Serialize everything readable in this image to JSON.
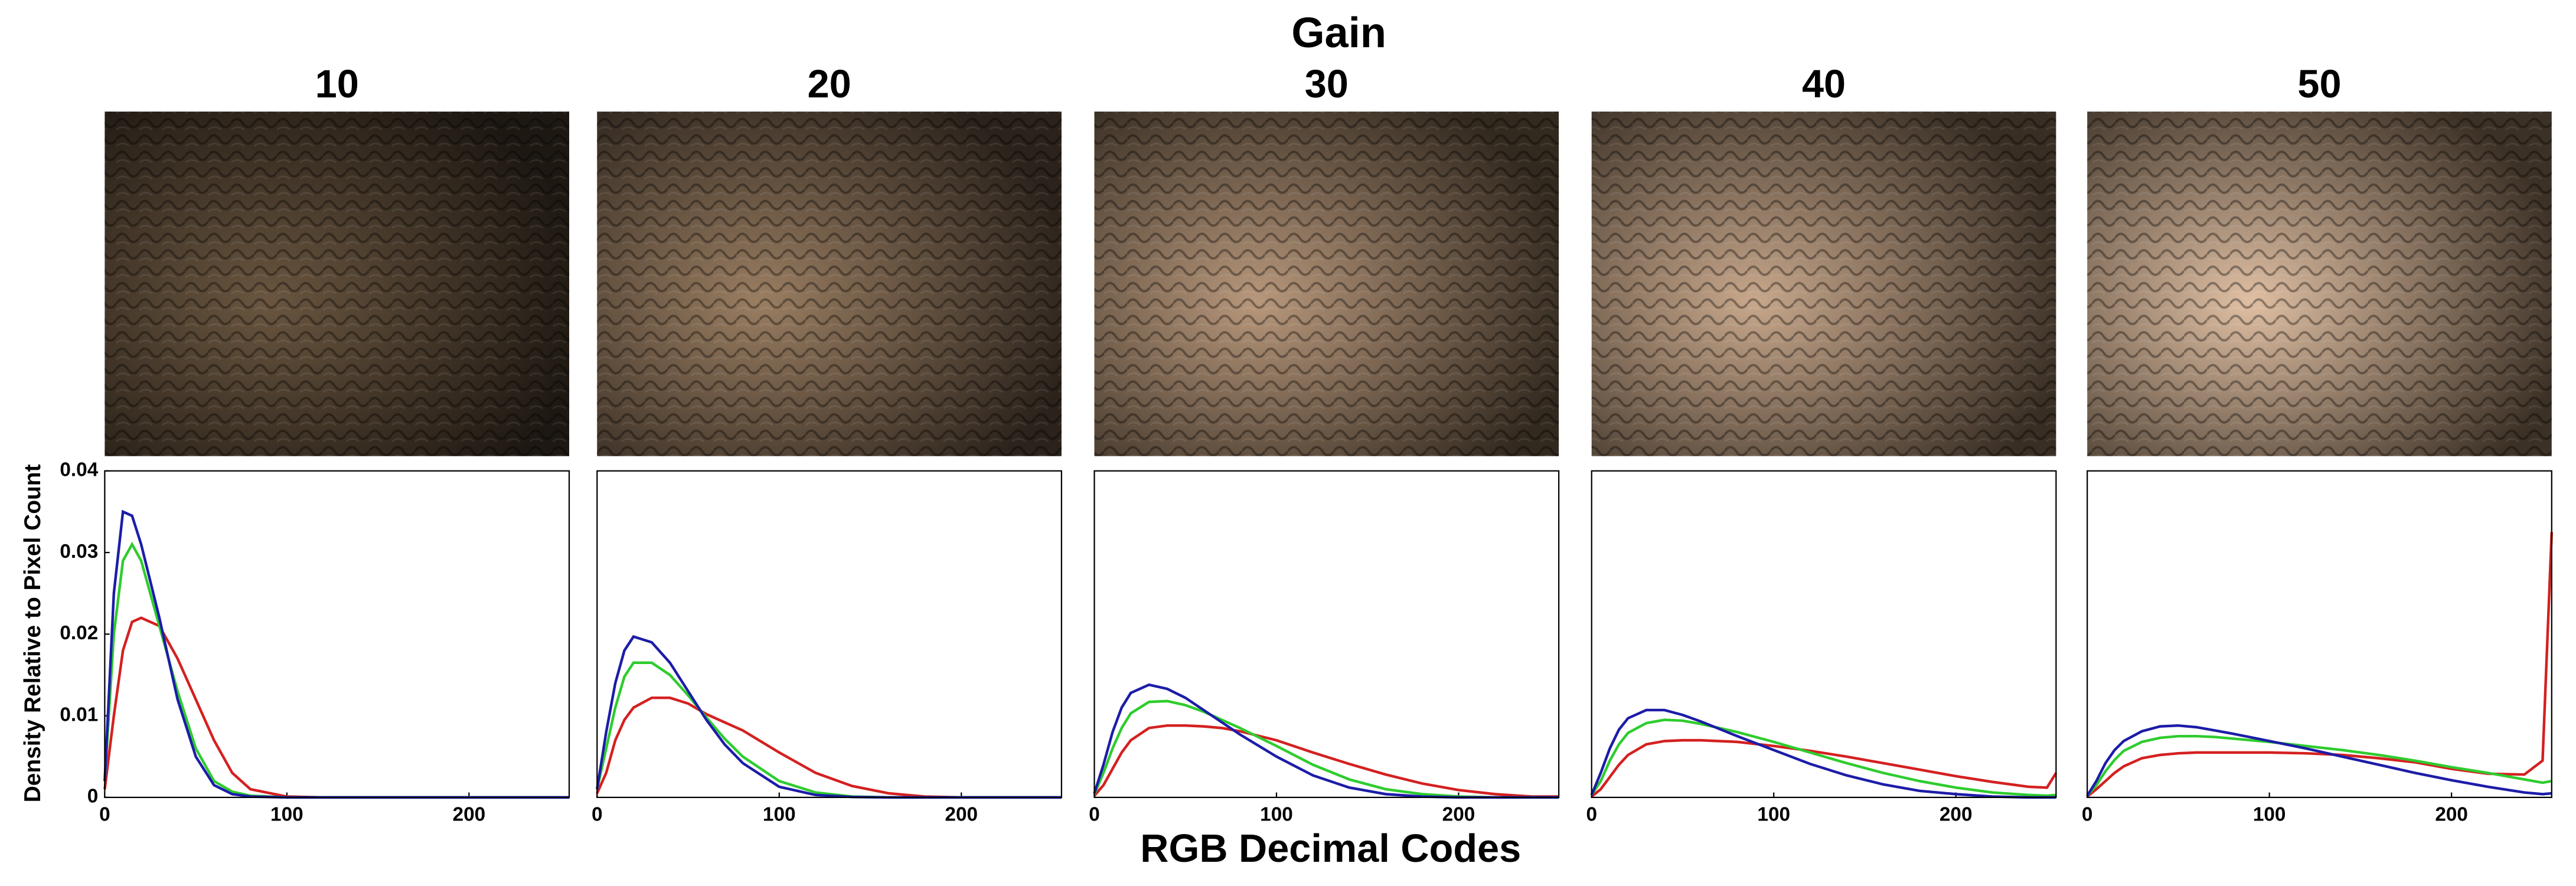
{
  "figure": {
    "title": "Gain",
    "x_label": "RGB Decimal Codes",
    "y_label": "Density Relative to Pixel Count"
  },
  "chart_data": [
    {
      "type": "line",
      "title": "10",
      "x": [
        0,
        5,
        10,
        15,
        20,
        30,
        40,
        50,
        60,
        70,
        80,
        100,
        120,
        140,
        160,
        180,
        200,
        220,
        240,
        250,
        255
      ],
      "xlim": [
        0,
        255
      ],
      "xticks": [
        0,
        100,
        200
      ],
      "ylim": [
        0,
        0.04
      ],
      "yticks": [
        0,
        0.01,
        0.02,
        0.03,
        0.04
      ],
      "series": [
        {
          "color": "#d42020",
          "values": [
            0.001,
            0.01,
            0.018,
            0.0215,
            0.022,
            0.021,
            0.017,
            0.012,
            0.007,
            0.003,
            0.001,
            0.0001,
            0,
            0,
            0,
            0,
            0,
            0,
            0,
            0,
            0
          ]
        },
        {
          "color": "#2ecc2e",
          "values": [
            0.002,
            0.02,
            0.029,
            0.031,
            0.029,
            0.021,
            0.013,
            0.006,
            0.002,
            0.0007,
            0.0002,
            0,
            0,
            0,
            0,
            0,
            0,
            0,
            0,
            0,
            0
          ]
        },
        {
          "color": "#1c1ca8",
          "values": [
            0.002,
            0.025,
            0.035,
            0.0345,
            0.031,
            0.022,
            0.012,
            0.005,
            0.0015,
            0.0004,
            0.0001,
            0,
            0,
            0,
            0,
            0,
            0,
            0,
            0,
            0,
            0
          ]
        }
      ]
    },
    {
      "type": "line",
      "title": "20",
      "x": [
        0,
        5,
        10,
        15,
        20,
        30,
        40,
        50,
        60,
        70,
        80,
        100,
        120,
        140,
        160,
        180,
        200,
        220,
        240,
        250,
        255
      ],
      "xlim": [
        0,
        255
      ],
      "xticks": [
        0,
        100,
        200
      ],
      "ylim": [
        0,
        0.04
      ],
      "series": [
        {
          "color": "#d42020",
          "values": [
            0.0005,
            0.003,
            0.007,
            0.0095,
            0.011,
            0.0122,
            0.0122,
            0.0115,
            0.0102,
            0.0092,
            0.0082,
            0.0055,
            0.003,
            0.0014,
            0.0005,
            0.0001,
            0,
            0,
            0,
            0,
            0
          ]
        },
        {
          "color": "#2ecc2e",
          "values": [
            0.001,
            0.006,
            0.011,
            0.0148,
            0.0165,
            0.0165,
            0.015,
            0.0125,
            0.0098,
            0.0072,
            0.005,
            0.002,
            0.0006,
            0.0001,
            0,
            0,
            0,
            0,
            0,
            0,
            0
          ]
        },
        {
          "color": "#1c1ca8",
          "values": [
            0.001,
            0.008,
            0.014,
            0.018,
            0.0197,
            0.019,
            0.0165,
            0.013,
            0.0095,
            0.0065,
            0.0042,
            0.0013,
            0.0003,
            5e-05,
            0,
            0,
            0,
            0,
            0,
            0,
            0
          ]
        }
      ]
    },
    {
      "type": "line",
      "title": "30",
      "x": [
        0,
        5,
        10,
        15,
        20,
        30,
        40,
        50,
        60,
        70,
        80,
        100,
        120,
        140,
        160,
        180,
        200,
        220,
        240,
        250,
        255
      ],
      "xlim": [
        0,
        255
      ],
      "xticks": [
        0,
        100,
        200
      ],
      "ylim": [
        0,
        0.04
      ],
      "series": [
        {
          "color": "#d42020",
          "values": [
            0.0002,
            0.0015,
            0.0035,
            0.0055,
            0.007,
            0.0085,
            0.0088,
            0.0088,
            0.0087,
            0.0085,
            0.0081,
            0.007,
            0.0055,
            0.0041,
            0.0028,
            0.0017,
            0.0009,
            0.0004,
            0.0001,
            0.0001,
            0.0001
          ]
        },
        {
          "color": "#2ecc2e",
          "values": [
            0.0004,
            0.003,
            0.006,
            0.0085,
            0.0103,
            0.0117,
            0.0118,
            0.0113,
            0.0105,
            0.0095,
            0.0085,
            0.0063,
            0.004,
            0.0022,
            0.001,
            0.0004,
            0.0001,
            0,
            0,
            0,
            0
          ]
        },
        {
          "color": "#1c1ca8",
          "values": [
            0.0005,
            0.004,
            0.008,
            0.011,
            0.0128,
            0.0138,
            0.0133,
            0.0122,
            0.0107,
            0.0092,
            0.0077,
            0.005,
            0.0027,
            0.0012,
            0.0004,
            0.0001,
            0,
            0,
            0,
            0,
            0
          ]
        }
      ]
    },
    {
      "type": "line",
      "title": "40",
      "x": [
        0,
        5,
        10,
        15,
        20,
        30,
        40,
        50,
        60,
        70,
        80,
        100,
        120,
        140,
        160,
        180,
        200,
        220,
        240,
        250,
        255
      ],
      "xlim": [
        0,
        255
      ],
      "xticks": [
        0,
        100,
        200
      ],
      "ylim": [
        0,
        0.04
      ],
      "series": [
        {
          "color": "#d42020",
          "values": [
            0.0001,
            0.001,
            0.0025,
            0.004,
            0.0052,
            0.0065,
            0.0069,
            0.007,
            0.007,
            0.0069,
            0.0068,
            0.0063,
            0.0057,
            0.005,
            0.0042,
            0.0034,
            0.0026,
            0.0019,
            0.0013,
            0.0012,
            0.003
          ]
        },
        {
          "color": "#2ecc2e",
          "values": [
            0.0003,
            0.002,
            0.0045,
            0.0065,
            0.0079,
            0.0091,
            0.0095,
            0.0094,
            0.009,
            0.0085,
            0.008,
            0.0068,
            0.0055,
            0.0042,
            0.003,
            0.002,
            0.0012,
            0.0006,
            0.0003,
            0.0002,
            0.0003
          ]
        },
        {
          "color": "#1c1ca8",
          "values": [
            0.0003,
            0.003,
            0.006,
            0.0083,
            0.0097,
            0.0107,
            0.0107,
            0.0101,
            0.0093,
            0.0084,
            0.0075,
            0.0058,
            0.0041,
            0.0027,
            0.0016,
            0.0008,
            0.0004,
            0.0001,
            0,
            0,
            0
          ]
        }
      ]
    },
    {
      "type": "line",
      "title": "50",
      "x": [
        0,
        5,
        10,
        15,
        20,
        30,
        40,
        50,
        60,
        70,
        80,
        100,
        120,
        140,
        160,
        180,
        200,
        220,
        240,
        250,
        255
      ],
      "xlim": [
        0,
        255
      ],
      "xticks": [
        0,
        100,
        200
      ],
      "ylim": [
        0,
        0.04
      ],
      "series": [
        {
          "color": "#d42020",
          "values": [
            0.0001,
            0.001,
            0.002,
            0.003,
            0.0038,
            0.0048,
            0.0052,
            0.0054,
            0.0055,
            0.0055,
            0.0055,
            0.0055,
            0.0054,
            0.0052,
            0.0048,
            0.0043,
            0.0035,
            0.0029,
            0.0028,
            0.0045,
            0.0325
          ]
        },
        {
          "color": "#2ecc2e",
          "values": [
            0.0002,
            0.0015,
            0.0032,
            0.0046,
            0.0057,
            0.0068,
            0.0073,
            0.0075,
            0.0075,
            0.0074,
            0.0072,
            0.0068,
            0.0063,
            0.0058,
            0.0052,
            0.0045,
            0.0037,
            0.003,
            0.0022,
            0.0018,
            0.002
          ]
        },
        {
          "color": "#1c1ca8",
          "values": [
            0.0002,
            0.002,
            0.0042,
            0.0058,
            0.0069,
            0.0081,
            0.0087,
            0.0088,
            0.0086,
            0.0082,
            0.0078,
            0.0069,
            0.006,
            0.005,
            0.004,
            0.003,
            0.0021,
            0.0013,
            0.0006,
            0.0004,
            0.0005
          ]
        }
      ]
    }
  ]
}
